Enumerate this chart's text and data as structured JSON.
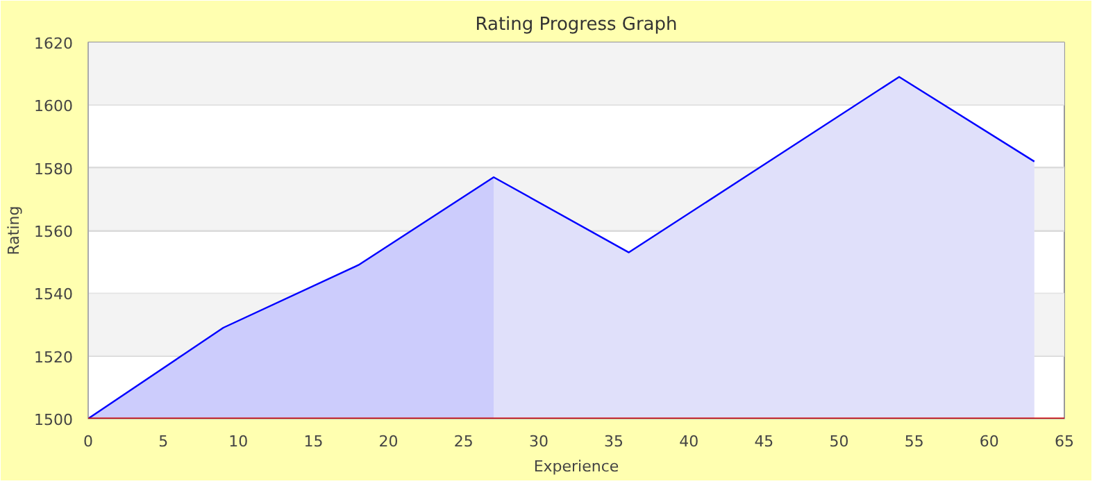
{
  "chart_data": {
    "type": "area",
    "title": "Rating Progress Graph",
    "xlabel": "Experience",
    "ylabel": "Rating",
    "series": [
      {
        "color": "#ccccfc",
        "x": [
          0,
          9,
          18,
          27
        ],
        "values": [
          1500,
          1529,
          1549,
          1577
        ]
      },
      {
        "color": "#e0e0fa",
        "x": [
          27,
          36,
          54,
          63
        ],
        "values": [
          1577,
          1553,
          1609,
          1582
        ]
      },
      {
        "type": "line",
        "color": "#0000ff",
        "x": [
          0,
          9,
          18,
          27,
          36,
          54,
          63
        ],
        "values": [
          1500,
          1529,
          1549,
          1577,
          1553,
          1609,
          1582
        ]
      }
    ],
    "xlim": [
      0,
      65
    ],
    "xticks": [
      0,
      5,
      10,
      15,
      20,
      25,
      30,
      35,
      40,
      45,
      50,
      55,
      60,
      65
    ],
    "ylim": [
      1500,
      1620
    ],
    "yticks": [
      1500,
      1520,
      1540,
      1560,
      1580,
      1600,
      1620
    ],
    "grid": "y",
    "bands": [
      {
        "axis": "y",
        "from": 1520,
        "to": 1540,
        "color": "#f3f3f3"
      },
      {
        "axis": "y",
        "from": 1560,
        "to": 1580,
        "color": "#f3f3f3"
      },
      {
        "axis": "y",
        "from": 1600,
        "to": 1620,
        "color": "#f3f3f3"
      }
    ],
    "ref_lines": [
      {
        "axis": "y",
        "value": 1500,
        "color": "#cc0000"
      }
    ]
  }
}
